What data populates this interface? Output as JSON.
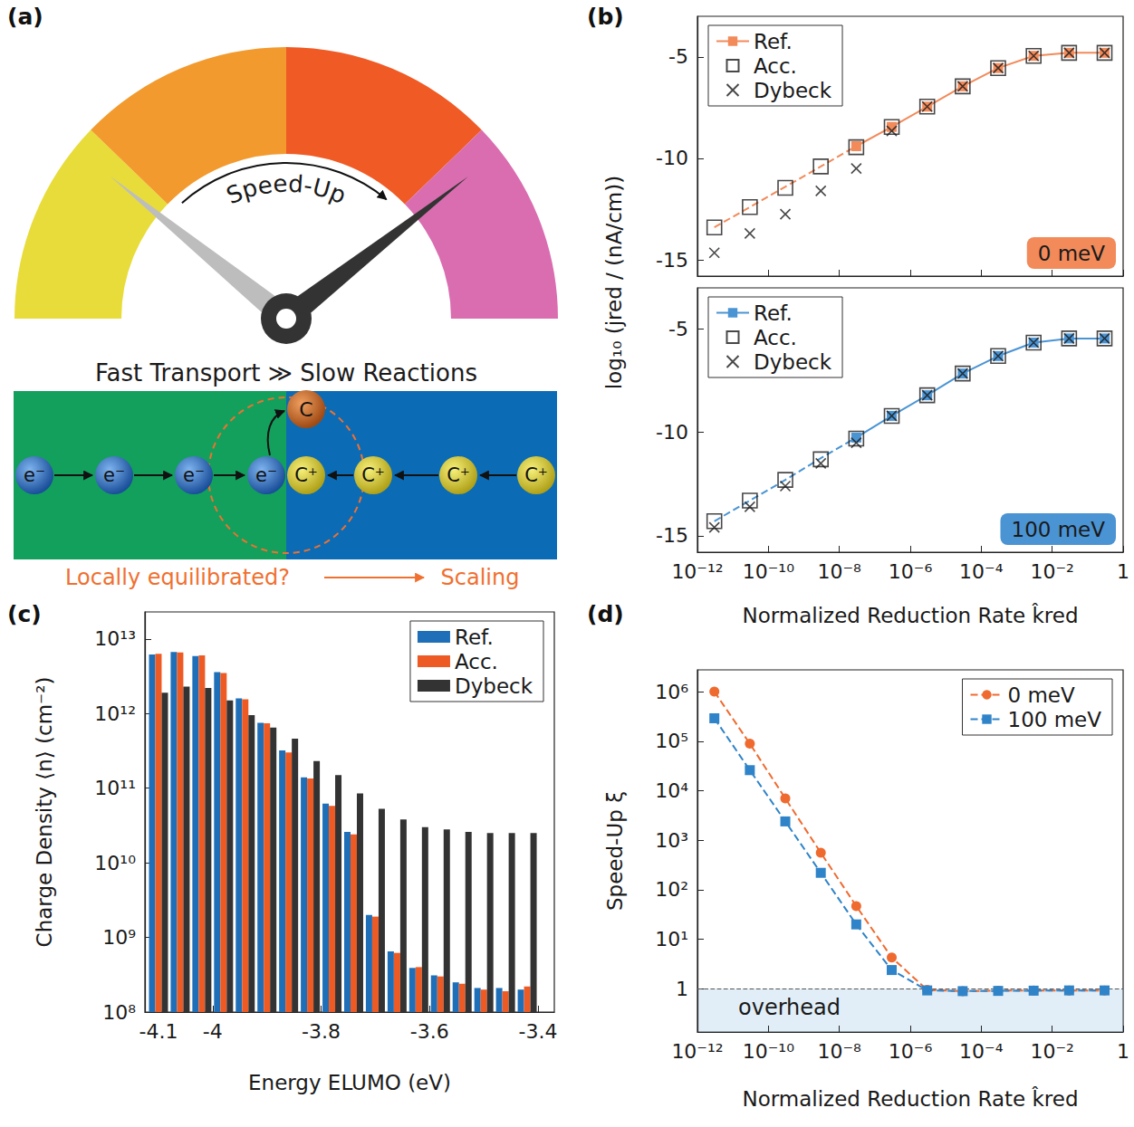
{
  "diagram": {
    "panel": "(a)",
    "gauge_label": "Speed-Up",
    "caption": "Fast Transport ≫ Slow Reactions",
    "electrons": [
      "e⁻",
      "e⁻",
      "e⁻",
      "e⁻"
    ],
    "cations": [
      "C⁺",
      "C⁺",
      "C⁺",
      "C⁺"
    ],
    "product": "C",
    "question": "Locally equilibrated?",
    "result": "Scaling"
  },
  "chart_data": [
    {
      "type": "line",
      "panel": "(b)",
      "y_label": "log₁₀ (jred / (nA/cm))",
      "x": [
        3e-12,
        3e-11,
        3e-10,
        3e-09,
        3e-08,
        3e-07,
        3e-06,
        3e-05,
        0.0003,
        0.003,
        0.03,
        0.3
      ],
      "xlim": [
        1e-12,
        1
      ],
      "xticks": [
        {
          "value": 1e-12,
          "label": "10⁻¹²"
        },
        {
          "value": 1e-10,
          "label": "10⁻¹⁰"
        },
        {
          "value": 1e-08,
          "label": "10⁻⁸"
        },
        {
          "value": 1e-06,
          "label": "10⁻⁶"
        },
        {
          "value": 0.0001,
          "label": "10⁻⁴"
        },
        {
          "value": 0.01,
          "label": "10⁻²"
        },
        1
      ],
      "ylim": [
        -15.8,
        -3
      ],
      "yticks": [
        -15,
        -10,
        -5
      ],
      "log": "x",
      "grid": false,
      "legend": "upper left",
      "tick_labels": "y",
      "annotations": [
        {
          "text": "0 meV",
          "color": "#f28a5a"
        }
      ],
      "series": [
        {
          "name": "Ref.",
          "type": "line",
          "color": "#f28a5a",
          "marker": "square",
          "line_style": "solid",
          "values": [
            null,
            null,
            null,
            null,
            -9.4,
            -8.45,
            -7.45,
            -6.45,
            -5.55,
            -4.95,
            -4.8,
            -4.8
          ]
        },
        {
          "name": "Ref.",
          "type": "line",
          "color": "#f28a5a",
          "marker": "none",
          "line_style": "dashed",
          "values": [
            -13.4,
            -12.4,
            -11.4,
            -10.4,
            -9.4,
            null,
            null,
            null,
            null,
            null,
            null,
            null
          ]
        },
        {
          "name": "Acc.",
          "type": "scatter",
          "color": "#1a1a1a",
          "marker": "square_open",
          "values": [
            -13.4,
            -12.4,
            -11.45,
            -10.4,
            -9.45,
            -8.45,
            -7.45,
            -6.45,
            -5.55,
            -4.95,
            -4.8,
            -4.8
          ]
        },
        {
          "name": "Dybeck",
          "type": "scatter",
          "color": "#1a1a1a",
          "marker": "x",
          "values": [
            -14.65,
            -13.7,
            -12.75,
            -11.6,
            -10.5,
            -8.65,
            -7.45,
            -6.45,
            -5.55,
            -4.95,
            -4.8,
            -4.8
          ]
        }
      ]
    },
    {
      "type": "line",
      "x_label": "Normalized Reduction Rate k̂red",
      "x": [
        3e-12,
        3e-11,
        3e-10,
        3e-09,
        3e-08,
        3e-07,
        3e-06,
        3e-05,
        0.0003,
        0.003,
        0.03,
        0.3
      ],
      "xlim": [
        1e-12,
        1
      ],
      "xticks": [
        {
          "value": 1e-12,
          "label": "10⁻¹²"
        },
        {
          "value": 1e-10,
          "label": "10⁻¹⁰"
        },
        {
          "value": 1e-08,
          "label": "10⁻⁸"
        },
        {
          "value": 1e-06,
          "label": "10⁻⁶"
        },
        {
          "value": 0.0001,
          "label": "10⁻⁴"
        },
        {
          "value": 0.01,
          "label": "10⁻²"
        },
        1
      ],
      "ylim": [
        -15.8,
        -3
      ],
      "yticks": [
        -15,
        -10,
        -5
      ],
      "log": "x",
      "grid": false,
      "legend": "upper left",
      "annotations": [
        {
          "text": "100 meV",
          "color": "#4a94d4"
        }
      ],
      "series": [
        {
          "name": "Ref.",
          "type": "line",
          "color": "#4a94d4",
          "marker": "square",
          "line_style": "solid",
          "values": [
            null,
            null,
            null,
            null,
            -10.25,
            -9.2,
            -8.2,
            -7.15,
            -6.3,
            -5.65,
            -5.45,
            -5.45
          ]
        },
        {
          "name": "Ref.",
          "type": "line",
          "color": "#4a94d4",
          "marker": "none",
          "line_style": "dashed",
          "values": [
            -14.3,
            -13.3,
            -12.3,
            -11.25,
            -10.25,
            null,
            null,
            null,
            null,
            null,
            null,
            null
          ]
        },
        {
          "name": "Acc.",
          "type": "scatter",
          "color": "#1a1a1a",
          "marker": "square_open",
          "values": [
            -14.3,
            -13.3,
            -12.3,
            -11.3,
            -10.3,
            -9.2,
            -8.2,
            -7.15,
            -6.3,
            -5.65,
            -5.45,
            -5.45
          ]
        },
        {
          "name": "Dybeck",
          "type": "scatter",
          "color": "#1a1a1a",
          "marker": "x",
          "values": [
            -14.6,
            -13.6,
            -12.6,
            -11.5,
            -10.5,
            -9.2,
            -8.2,
            -7.15,
            -6.3,
            -5.65,
            -5.45,
            -5.45
          ]
        }
      ]
    },
    {
      "type": "bar",
      "panel": "(c)",
      "x_label": "Energy ELUMO (eV)",
      "y_label": "Charge Density ⟨n⟩ (cm⁻²)",
      "x": [
        -4.1,
        -4.06,
        -4.02,
        -3.98,
        -3.94,
        -3.9,
        -3.86,
        -3.82,
        -3.78,
        -3.74,
        -3.7,
        -3.66,
        -3.62,
        -3.58,
        -3.54,
        -3.5,
        -3.46,
        -3.42
      ],
      "xlim": [
        -4.125,
        -3.37
      ],
      "xticks": [
        -4.1,
        -4,
        -3.8,
        -3.6,
        -3.4
      ],
      "ylim": [
        100000000.0,
        23000000000000.0
      ],
      "yticks": [
        {
          "value": 100000000.0,
          "label": "10⁸"
        },
        {
          "value": 1000000000.0,
          "label": "10⁹"
        },
        {
          "value": 10000000000.0,
          "label": "10¹⁰"
        },
        {
          "value": 100000000000.0,
          "label": "10¹¹"
        },
        {
          "value": 1000000000000.0,
          "label": "10¹²"
        },
        {
          "value": 10000000000000.0,
          "label": "10¹³"
        }
      ],
      "log": "y",
      "grid": false,
      "legend": "upper right",
      "series": [
        {
          "name": "Ref.",
          "color": "#1f6fb8",
          "values": [
            6200000000000.0,
            6700000000000.0,
            5900000000000.0,
            3600000000000.0,
            1600000000000.0,
            750000000000.0,
            320000000000.0,
            140000000000.0,
            62000000000.0,
            26000000000.0,
            2000000000.0,
            650000000.0,
            390000000.0,
            310000000.0,
            250000000.0,
            210000000.0,
            210000000.0,
            200000000.0
          ]
        },
        {
          "name": "Acc.",
          "color": "#ee5a24",
          "values": [
            6300000000000.0,
            6600000000000.0,
            6000000000000.0,
            3500000000000.0,
            1550000000000.0,
            740000000000.0,
            300000000000.0,
            135000000000.0,
            58000000000.0,
            24000000000.0,
            1900000000.0,
            620000000.0,
            400000000.0,
            300000000.0,
            240000000.0,
            200000000.0,
            190000000.0,
            220000000.0
          ]
        },
        {
          "name": "Dybeck",
          "color": "#333333",
          "values": [
            1900000000000.0,
            2300000000000.0,
            2200000000000.0,
            1500000000000.0,
            950000000000.0,
            650000000000.0,
            460000000000.0,
            230000000000.0,
            150000000000.0,
            85000000000.0,
            53000000000.0,
            38000000000.0,
            30000000000.0,
            28000000000.0,
            26000000000.0,
            25000000000.0,
            25000000000.0,
            25000000000.0
          ]
        }
      ]
    },
    {
      "type": "line",
      "panel": "(d)",
      "x_label": "Normalized Reduction Rate k̂red",
      "y_label": "Speed-Up ξ",
      "x": [
        3e-12,
        3e-11,
        3e-10,
        3e-09,
        3e-08,
        3e-07,
        3e-06,
        3e-05,
        0.0003,
        0.003,
        0.03,
        0.3
      ],
      "xlim": [
        1e-12,
        1
      ],
      "xticks": [
        {
          "value": 1e-12,
          "label": "10⁻¹²"
        },
        {
          "value": 1e-10,
          "label": "10⁻¹⁰"
        },
        {
          "value": 1e-08,
          "label": "10⁻⁸"
        },
        {
          "value": 1e-06,
          "label": "10⁻⁶"
        },
        {
          "value": 0.0001,
          "label": "10⁻⁴"
        },
        {
          "value": 0.01,
          "label": "10⁻²"
        },
        1
      ],
      "ylim": [
        0.135,
        2750000.0
      ],
      "yticks": [
        1,
        {
          "value": 10,
          "label": "10¹"
        },
        {
          "value": 100,
          "label": "10²"
        },
        {
          "value": 1000,
          "label": "10³"
        },
        {
          "value": 10000,
          "label": "10⁴"
        },
        {
          "value": 100000,
          "label": "10⁵"
        },
        {
          "value": 1000000,
          "label": "10⁶"
        }
      ],
      "log": true,
      "grid": false,
      "legend": "upper right",
      "annotations": [
        {
          "text": "overhead",
          "y_max": 1
        }
      ],
      "series": [
        {
          "name": "0 meV",
          "color": "#ef6a2f",
          "marker": "circle",
          "line_style": "dashed",
          "values": [
            1000000.0,
            89000.0,
            7000.0,
            560,
            47,
            4.3,
            0.95,
            0.9,
            0.92,
            0.93,
            0.93,
            0.93
          ]
        },
        {
          "name": "100 meV",
          "color": "#2f83c8",
          "marker": "square",
          "line_style": "dashed",
          "values": [
            290000.0,
            26000.0,
            2400.0,
            220,
            20,
            2.4,
            0.93,
            0.9,
            0.91,
            0.92,
            0.93,
            0.93
          ]
        }
      ]
    }
  ]
}
